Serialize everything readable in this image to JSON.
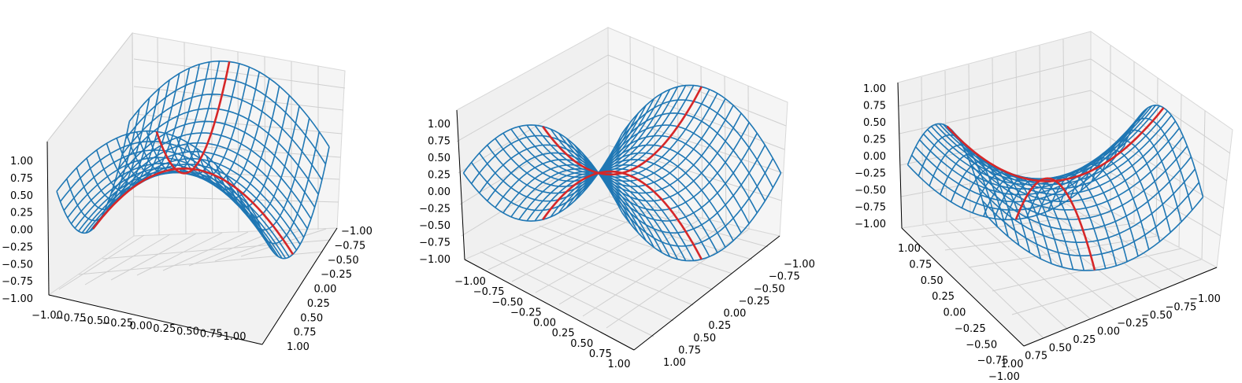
{
  "chart_data": [
    {
      "type": "surface",
      "surface": "z = x^2 - y^2 (saddle), wireframe",
      "wireframe_color": "#1f77b4",
      "highlight_color": "#d62728",
      "xlim": [
        -1.0,
        1.0
      ],
      "ylim": [
        -1.0,
        1.0
      ],
      "zlim": [
        -1.0,
        1.0
      ],
      "x_ticks": [
        "−1.00",
        "−0.75",
        "−0.50",
        "−0.25",
        "0.00",
        "0.25",
        "0.50",
        "0.75",
        "1.00"
      ],
      "y_ticks": [
        "−1.00",
        "−0.75",
        "−0.50",
        "−0.25",
        "0.00",
        "0.25",
        "0.50",
        "0.75",
        "1.00"
      ],
      "z_ticks": [
        "−0.75",
        "−0.50",
        "−0.25",
        "0.00",
        "0.25",
        "0.50",
        "0.75",
        "1.00"
      ],
      "z_ticks_bottom": "−1.00",
      "view": {
        "elev": 35,
        "azim": -70
      },
      "grid": true
    },
    {
      "type": "surface",
      "surface": "z = x^2 - y^2 (saddle), wireframe",
      "wireframe_color": "#1f77b4",
      "highlight_color": "#d62728",
      "xlim": [
        -1.0,
        1.0
      ],
      "ylim": [
        -1.0,
        1.0
      ],
      "zlim": [
        -1.0,
        1.0
      ],
      "x_ticks": [
        "−1.00",
        "−0.75",
        "−0.50",
        "−0.25",
        "0.00",
        "0.25",
        "0.50",
        "0.75",
        "1.00"
      ],
      "y_ticks": [
        "−1.00",
        "−0.75",
        "−0.50",
        "−0.25",
        "0.00",
        "0.25",
        "0.50",
        "0.75",
        "1.00"
      ],
      "z_ticks": [
        "−1.00",
        "−0.75",
        "−0.50",
        "−0.25",
        "0.00",
        "0.25",
        "0.50",
        "0.75",
        "1.00"
      ],
      "view": {
        "elev": 30,
        "azim": -45
      },
      "grid": true
    },
    {
      "type": "surface",
      "surface": "z = x^2 - y^2 (saddle), wireframe",
      "wireframe_color": "#1f77b4",
      "highlight_color": "#d62728",
      "xlim": [
        -1.0,
        1.0
      ],
      "ylim": [
        1.0,
        -1.0
      ],
      "zlim": [
        -1.0,
        1.0
      ],
      "x_ticks": [
        "−1.00",
        "−0.75",
        "−0.50",
        "−0.25",
        "0.00",
        "0.25",
        "0.50",
        "0.75",
        "1.00"
      ],
      "y_ticks": [
        "1.00",
        "0.75",
        "0.50",
        "0.25",
        "0.00",
        "−0.25",
        "−0.50",
        "−0.75",
        "−1.00"
      ],
      "z_ticks": [
        "−1.00",
        "−0.75",
        "−0.50",
        "−0.25",
        "0.00",
        "0.25",
        "0.50",
        "0.75",
        "1.00"
      ],
      "view": {
        "elev": 30,
        "azim": -20
      },
      "grid": true
    }
  ]
}
